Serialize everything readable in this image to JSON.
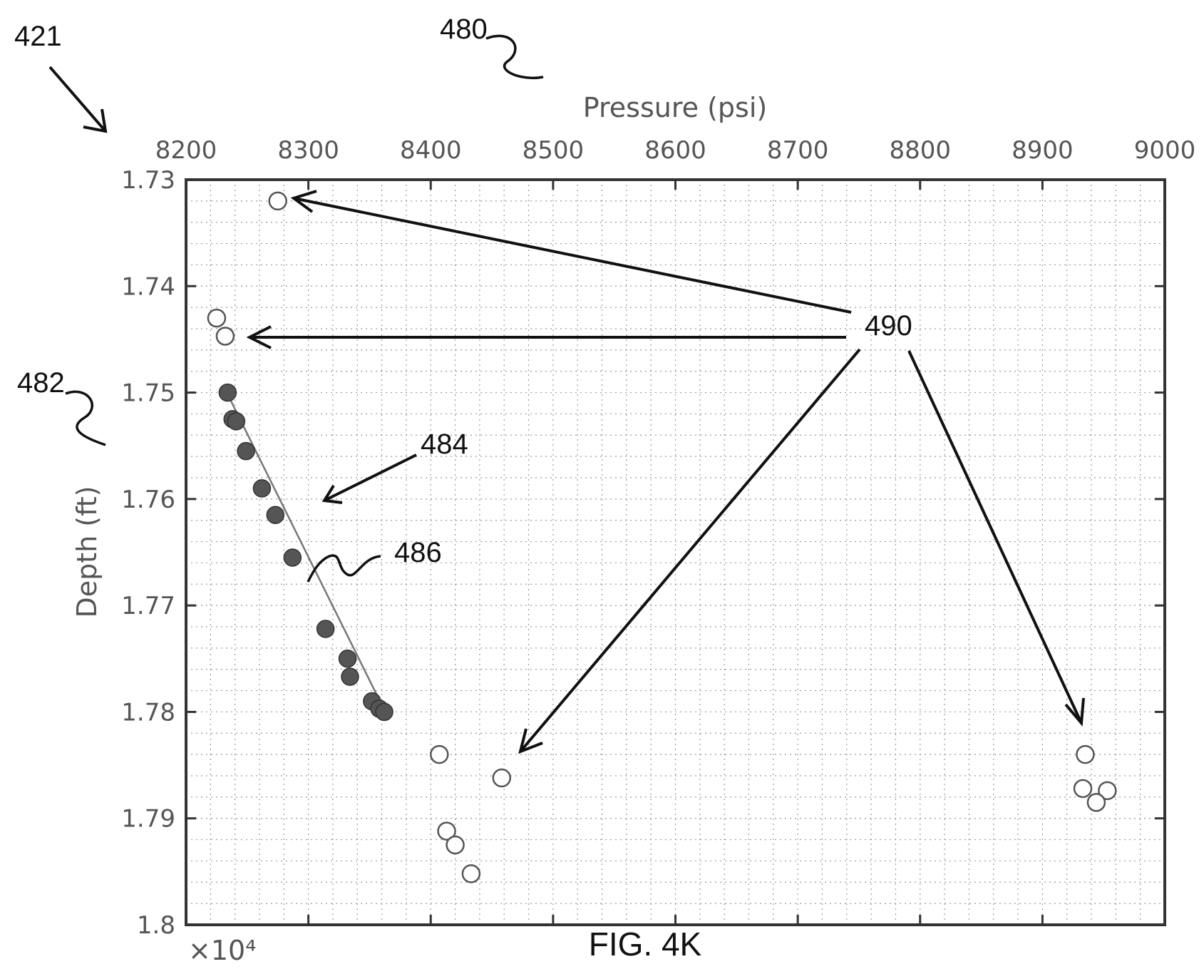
{
  "annotations": {
    "fig_ref": "421",
    "x_ref": "480",
    "y_ref": "482",
    "points_ref": "484",
    "line_ref": "486",
    "outliers_ref": "490",
    "caption": "FIG. 4K"
  },
  "chart_data": {
    "type": "scatter",
    "xlabel": "Pressure (psi)",
    "ylabel": "Depth (ft)",
    "xlim": [
      8200,
      9000
    ],
    "ylim": [
      17300,
      18000
    ],
    "y_reversed": true,
    "x_axis_position": "top",
    "y_exponent_label": "×10⁴",
    "xticks": [
      "8200",
      "8300",
      "8400",
      "8500",
      "8600",
      "8700",
      "8800",
      "8900",
      "9000"
    ],
    "yticks": [
      "1.73",
      "1.74",
      "1.75",
      "1.76",
      "1.77",
      "1.78",
      "1.79",
      "1.8"
    ],
    "grid": true,
    "series": [
      {
        "marker": "filled-circle",
        "color": "#555555",
        "x": [
          8234,
          8238,
          8241,
          8249,
          8262,
          8273,
          8287,
          8314,
          8332,
          8334,
          8352,
          8358,
          8362
        ],
        "y": [
          17500,
          17525,
          17527,
          17555,
          17590,
          17615,
          17655,
          17722,
          17750,
          17767,
          17790,
          17797,
          17800
        ]
      },
      {
        "marker": "open-circle",
        "color": "#555555",
        "x": [
          8275,
          8225,
          8232,
          8407,
          8458,
          8413,
          8420,
          8433,
          8935,
          8933,
          8953,
          8944
        ],
        "y": [
          17320,
          17430,
          17447,
          17840,
          17862,
          17912,
          17925,
          17952,
          17840,
          17872,
          17874,
          17885
        ]
      },
      {
        "mark": "fit-line",
        "color": "#777777",
        "x": [
          8232,
          8365
        ],
        "y": [
          17497,
          17805
        ]
      }
    ]
  }
}
